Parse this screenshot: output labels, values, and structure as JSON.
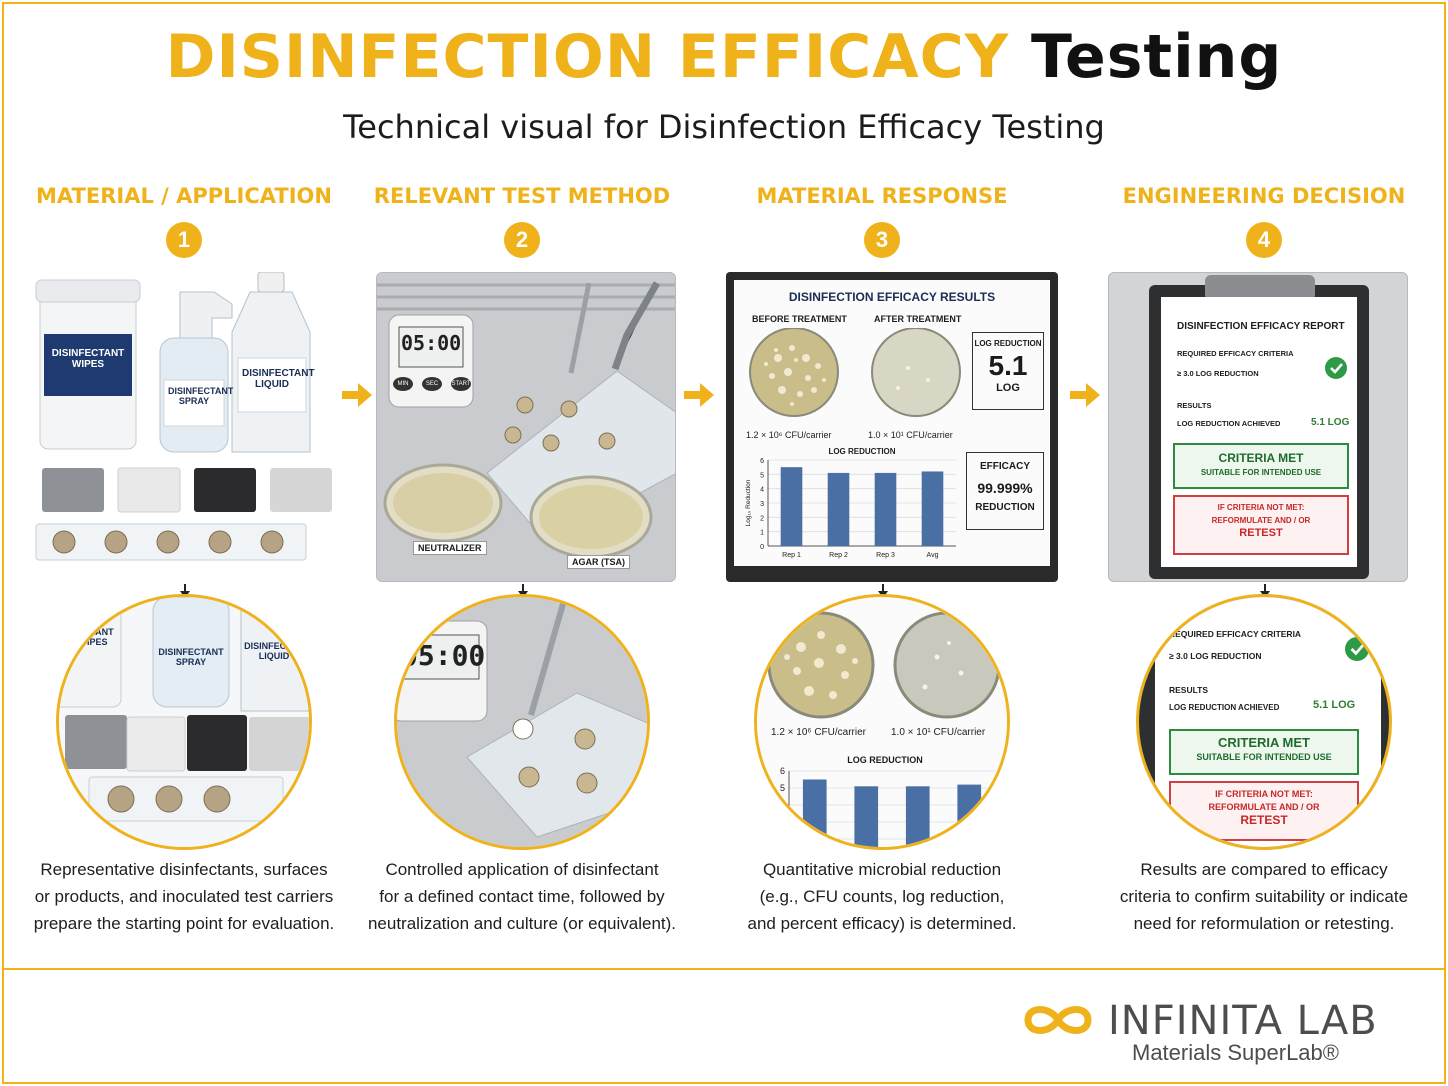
{
  "title": {
    "accent": "DISINFECTION EFFICACY",
    "dark": "Testing"
  },
  "subtitle": "Technical visual for Disinfection Efficacy Testing",
  "colors": {
    "accent": "#efb21a",
    "navy": "#1a2d55",
    "green": "#2e8a3e",
    "red": "#c62828",
    "bar": "#4a6fa5"
  },
  "steps": [
    {
      "number": "1",
      "heading": "MATERIAL / APPLICATION",
      "caption": [
        "Representative disinfectants, surfaces",
        "or products, and inoculated test carriers",
        "prepare the starting point for evaluation."
      ],
      "labels": {
        "wipes": "DISINFECTANT WIPES",
        "spray": "DISINFECTANT SPRAY",
        "liquid": "DISINFECTANT LIQUID"
      },
      "zoom_labels": {
        "wipes": "FECTANT WIPES",
        "spray": "DISINFECTANT SPRAY",
        "liquid": "DISINFECTAN LIQUID"
      }
    },
    {
      "number": "2",
      "heading": "RELEVANT TEST METHOD",
      "caption": [
        "Controlled application of disinfectant",
        "for a defined contact time, followed by",
        "neutralization and culture (or equivalent)."
      ],
      "timer": "05:00",
      "timer_buttons": [
        "MIN",
        "SEC",
        "START"
      ],
      "dish_labels": {
        "neutralizer": "NEUTRALIZER",
        "agar": "AGAR (TSA)"
      }
    },
    {
      "number": "3",
      "heading": "MATERIAL RESPONSE",
      "caption": [
        "Quantitative microbial reduction",
        "(e.g., CFU counts, log reduction,",
        "and percent efficacy) is determined."
      ]
    },
    {
      "number": "4",
      "heading": "ENGINEERING DECISION",
      "caption": [
        "Results are compared to efficacy",
        "criteria to confirm suitability or indicate",
        "need for reformulation or retesting."
      ]
    }
  ],
  "results_screen": {
    "title": "DISINFECTION EFFICACY RESULTS",
    "before_label": "BEFORE TREATMENT",
    "after_label": "AFTER TREATMENT",
    "before_cfu": "1.2 × 10⁶ CFU/carrier",
    "after_cfu": "1.0 × 10¹ CFU/carrier",
    "log_box": {
      "label": "LOG REDUCTION",
      "value": "5.1",
      "unit": "LOG"
    },
    "efficacy_box": {
      "label": "EFFICACY",
      "value": "99.999%",
      "unit": "REDUCTION"
    }
  },
  "chart_data": {
    "type": "bar",
    "title": "LOG REDUCTION",
    "ylabel": "Log₁₀ Reduction",
    "xlabel": "",
    "categories": [
      "Rep 1",
      "Rep 2",
      "Rep 3",
      "Avg"
    ],
    "values": [
      5.5,
      5.1,
      5.1,
      5.2
    ],
    "ylim": [
      0,
      6
    ],
    "yticks": [
      0,
      1,
      2,
      3,
      4,
      5,
      6
    ],
    "grid": true,
    "color": "#4a6fa5"
  },
  "report": {
    "title": "DISINFECTION EFFICACY REPORT",
    "criteria_heading": "REQUIRED EFFICACY CRITERIA",
    "criteria_value": "≥ 3.0 LOG REDUCTION",
    "results_heading": "RESULTS",
    "results_label": "LOG REDUCTION ACHIEVED",
    "results_value": "5.1 LOG",
    "met_title": "CRITERIA MET",
    "met_sub": "SUITABLE FOR INTENDED USE",
    "not_met_1": "IF CRITERIA NOT MET:",
    "not_met_2": "REFORMULATE AND / OR",
    "not_met_3": "RETEST"
  },
  "logo": {
    "name": "INFINITA LAB",
    "tagline": "Materials SuperLab®"
  }
}
